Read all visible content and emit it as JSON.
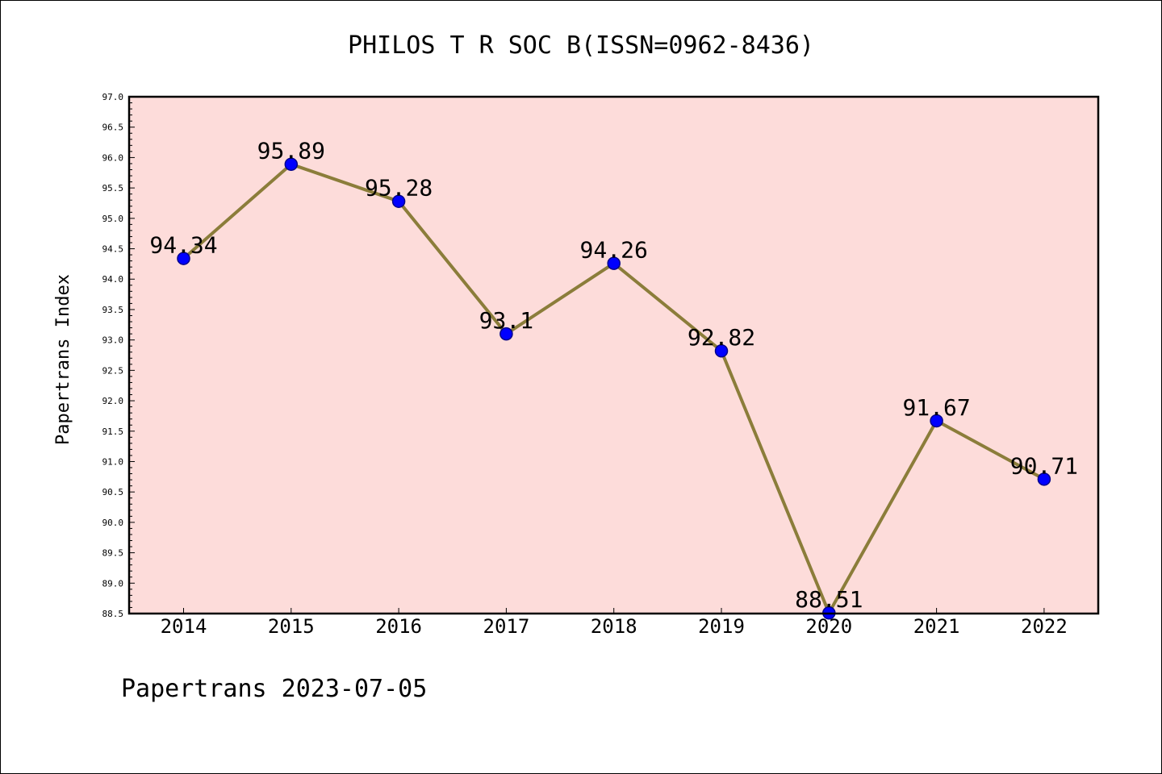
{
  "chart_data": {
    "type": "line",
    "title": "PHILOS T R SOC B(ISSN=0962-8436)",
    "xlabel": "",
    "ylabel": "Papertrans Index",
    "categories": [
      "2014",
      "2015",
      "2016",
      "2017",
      "2018",
      "2019",
      "2020",
      "2021",
      "2022"
    ],
    "series": [
      {
        "values": [
          94.34,
          95.89,
          95.28,
          93.1,
          94.26,
          92.82,
          88.51,
          91.67,
          90.71
        ],
        "labels": [
          "94.34",
          "95.89",
          "95.28",
          "93.1",
          "94.26",
          "92.82",
          "88.51",
          "91.67",
          "90.71"
        ]
      }
    ],
    "ylim": [
      88.5,
      97.0
    ],
    "ytick_step": 0.5,
    "yminor_step": 0.1,
    "grid": false,
    "legend": "none",
    "colors": {
      "plot_background": "#fddcda",
      "line": "#8b7d3a",
      "marker": "#0000ff",
      "marker_edge": "#00008b"
    }
  },
  "footer": "Papertrans 2023-07-05"
}
